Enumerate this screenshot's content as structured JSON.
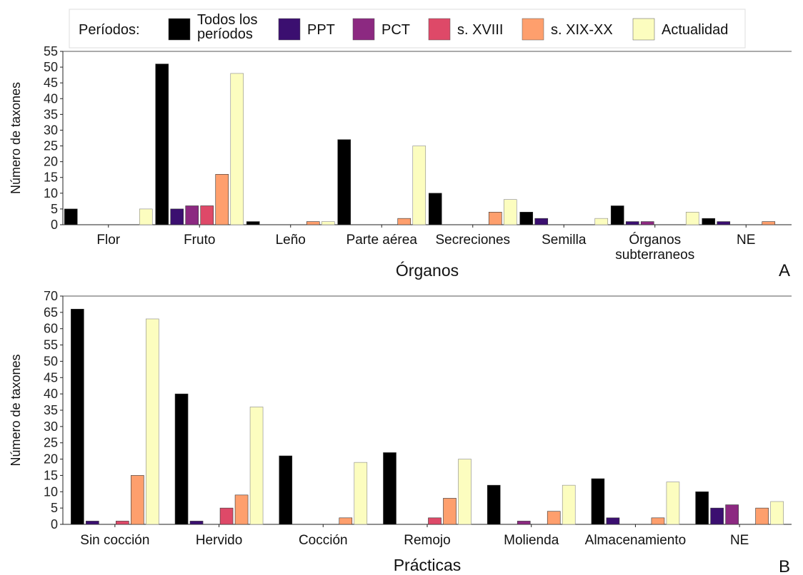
{
  "legend": {
    "title": "Períodos:",
    "items": [
      {
        "label": "Todos los períodos",
        "color": "#000000"
      },
      {
        "label": "PPT",
        "color": "#3b0f70"
      },
      {
        "label": "PCT",
        "color": "#8c2981"
      },
      {
        "label": "s. XVIII",
        "color": "#de4968"
      },
      {
        "label": "s. XIX-XX",
        "color": "#fe9f6d"
      },
      {
        "label": "Actualidad",
        "color": "#fcfdbf"
      }
    ]
  },
  "chart_data": [
    {
      "type": "bar",
      "panel": "A",
      "xlabel": "Órganos",
      "ylabel": "Número de taxones",
      "ylim": [
        0,
        55
      ],
      "yticks": [
        0,
        5,
        10,
        15,
        20,
        25,
        30,
        35,
        40,
        45,
        50,
        55
      ],
      "categories": [
        "Flor",
        "Fruto",
        "Leño",
        "Parte aérea",
        "Secreciones",
        "Semilla",
        "Órganos subterraneos",
        "NE"
      ],
      "series": [
        {
          "name": "Todos los períodos",
          "values": [
            5,
            51,
            1,
            27,
            10,
            4,
            6,
            2
          ]
        },
        {
          "name": "PPT",
          "values": [
            0,
            5,
            0,
            0,
            0,
            2,
            1,
            1
          ]
        },
        {
          "name": "PCT",
          "values": [
            0,
            6,
            0,
            0,
            0,
            0,
            1,
            0
          ]
        },
        {
          "name": "s. XVIII",
          "values": [
            0,
            6,
            0,
            0,
            0,
            0,
            0,
            0
          ]
        },
        {
          "name": "s. XIX-XX",
          "values": [
            0,
            16,
            1,
            2,
            4,
            0,
            0,
            1
          ]
        },
        {
          "name": "Actualidad",
          "values": [
            5,
            48,
            1,
            25,
            8,
            2,
            4,
            0
          ]
        }
      ]
    },
    {
      "type": "bar",
      "panel": "B",
      "xlabel": "Prácticas",
      "ylabel": "Número de taxones",
      "ylim": [
        0,
        70
      ],
      "yticks": [
        0,
        5,
        10,
        15,
        20,
        25,
        30,
        35,
        40,
        45,
        50,
        55,
        60,
        65,
        70
      ],
      "categories": [
        "Sin cocción",
        "Hervido",
        "Cocción",
        "Remojo",
        "Molienda",
        "Almacenamiento",
        "NE"
      ],
      "series": [
        {
          "name": "Todos los períodos",
          "values": [
            66,
            40,
            21,
            22,
            12,
            14,
            10
          ]
        },
        {
          "name": "PPT",
          "values": [
            1,
            1,
            0,
            0,
            0,
            2,
            5
          ]
        },
        {
          "name": "PCT",
          "values": [
            0,
            0,
            0,
            0,
            1,
            0,
            6
          ]
        },
        {
          "name": "s. XVIII",
          "values": [
            1,
            5,
            0,
            2,
            0,
            0,
            0
          ]
        },
        {
          "name": "s. XIX-XX",
          "values": [
            15,
            9,
            2,
            8,
            4,
            2,
            5
          ]
        },
        {
          "name": "Actualidad",
          "values": [
            63,
            36,
            19,
            20,
            12,
            13,
            7
          ]
        }
      ]
    }
  ]
}
